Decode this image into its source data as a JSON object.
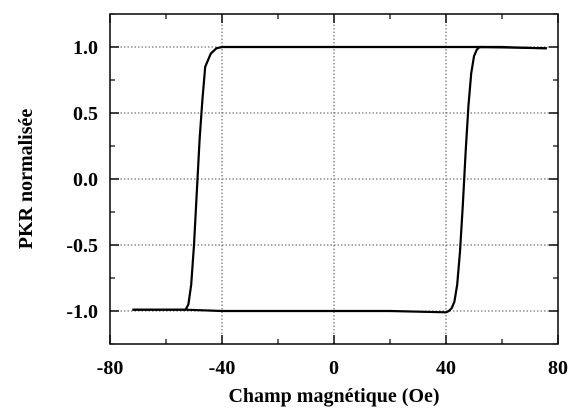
{
  "chart_data": {
    "type": "line",
    "title": "",
    "xlabel": "Champ magnétique (Oe)",
    "ylabel": "PKR normalisée",
    "xlim": [
      -80,
      80
    ],
    "ylim": [
      -1.25,
      1.25
    ],
    "xticks": [
      -80,
      -40,
      0,
      40,
      80
    ],
    "xtick_labels": [
      "-80",
      "-40",
      "0",
      "40",
      "80"
    ],
    "yticks": [
      -1.0,
      -0.5,
      0.0,
      0.5,
      1.0
    ],
    "ytick_labels": [
      "-1.0",
      "-0.5",
      "0.0",
      "0.5",
      "1.0"
    ],
    "grid": "dotted, at major ticks",
    "legend": "none",
    "line_color": "#000000",
    "series": [
      {
        "values_descending_sweep": {
          "x": [
            76,
            60,
            40,
            20,
            0,
            -20,
            -39,
            -40,
            -42,
            -44,
            -46,
            -47,
            -48,
            -49,
            -50,
            -51,
            -52,
            -53,
            -72
          ],
          "y": [
            0.99,
            1.0,
            1.0,
            1.0,
            1.0,
            1.0,
            1.0,
            1.0,
            0.99,
            0.95,
            0.85,
            0.6,
            0.3,
            -0.1,
            -0.5,
            -0.8,
            -0.95,
            -0.99,
            -0.99
          ]
        },
        "values_ascending_sweep": {
          "x": [
            -72,
            -53,
            -40,
            -20,
            0,
            20,
            40,
            41,
            42,
            43,
            44,
            45,
            46,
            47,
            48,
            49,
            50,
            51,
            52,
            76
          ],
          "y": [
            -0.99,
            -0.99,
            -1.0,
            -1.0,
            -1.0,
            -1.0,
            -1.01,
            -1.0,
            -0.98,
            -0.93,
            -0.8,
            -0.55,
            -0.2,
            0.2,
            0.55,
            0.8,
            0.93,
            0.98,
            1.0,
            0.99
          ]
        }
      }
    ]
  }
}
